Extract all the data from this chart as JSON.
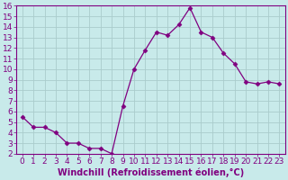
{
  "x": [
    0,
    1,
    2,
    3,
    4,
    5,
    6,
    7,
    8,
    9,
    10,
    11,
    12,
    13,
    14,
    15,
    16,
    17,
    18,
    19,
    20,
    21,
    22,
    23
  ],
  "y": [
    5.5,
    4.5,
    4.5,
    4.0,
    3.0,
    3.0,
    2.5,
    2.5,
    2.0,
    6.5,
    10.0,
    11.8,
    13.5,
    13.2,
    14.2,
    15.8,
    13.5,
    13.0,
    11.5,
    10.5,
    8.8,
    8.6,
    8.8,
    8.6
  ],
  "line_color": "#800080",
  "marker": "D",
  "marker_size": 2.5,
  "xlabel": "Windchill (Refroidissement éolien,°C)",
  "xlim": [
    -0.5,
    23.5
  ],
  "ylim": [
    2,
    16
  ],
  "yticks": [
    2,
    3,
    4,
    5,
    6,
    7,
    8,
    9,
    10,
    11,
    12,
    13,
    14,
    15,
    16
  ],
  "xticks": [
    0,
    1,
    2,
    3,
    4,
    5,
    6,
    7,
    8,
    9,
    10,
    11,
    12,
    13,
    14,
    15,
    16,
    17,
    18,
    19,
    20,
    21,
    22,
    23
  ],
  "background_color": "#c8eaea",
  "grid_color": "#aacccc",
  "tick_color": "#800080",
  "label_color": "#800080",
  "font_size": 6.5,
  "xlabel_fontsize": 7.0
}
